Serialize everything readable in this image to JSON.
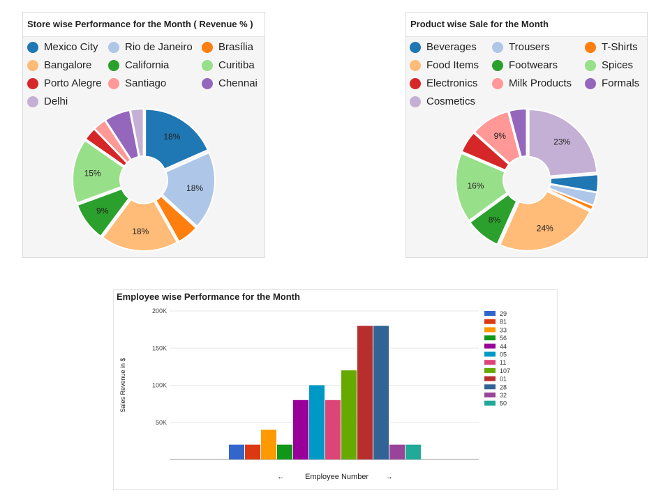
{
  "chart_data": [
    {
      "type": "pie",
      "donut": true,
      "title": "Store wise Performance for the Month ( Revenue % )",
      "legend_position": "top",
      "categories": [
        "Mexico City",
        "Rio de Janeiro",
        "Brasília",
        "Bangalore",
        "California",
        "Curitiba",
        "Porto Alegre",
        "Santiago",
        "Chennai",
        "Delhi"
      ],
      "values": [
        18,
        18,
        5,
        18,
        9,
        15,
        3,
        3,
        6,
        3
      ],
      "colors": [
        "#1f77b4",
        "#aec7e8",
        "#ff7f0e",
        "#ffbb78",
        "#2ca02c",
        "#98df8a",
        "#d62728",
        "#ff9896",
        "#9467bd",
        "#c5b0d5"
      ],
      "slice_labels": [
        "18%",
        "18%",
        "",
        "18%",
        "9%",
        "15%",
        "",
        "",
        "",
        ""
      ]
    },
    {
      "type": "pie",
      "donut": true,
      "title": "Product wise Sale for the Month",
      "legend_position": "top",
      "categories": [
        "Beverages",
        "Trousers",
        "T-Shirts",
        "Food Items",
        "Footwears",
        "Spices",
        "Electronics",
        "Milk Products",
        "Formals",
        "Cosmetics"
      ],
      "slice_order": [
        "Cosmetics",
        "Beverages",
        "Trousers",
        "T-Shirts",
        "Food Items",
        "Footwears",
        "Spices",
        "Electronics",
        "Milk Products",
        "Formals"
      ],
      "values": [
        4,
        3,
        1,
        24,
        8,
        16,
        5,
        9,
        4,
        23
      ],
      "colors": [
        "#1f77b4",
        "#aec7e8",
        "#ff7f0e",
        "#ffbb78",
        "#2ca02c",
        "#98df8a",
        "#d62728",
        "#ff9896",
        "#9467bd",
        "#c5b0d5"
      ],
      "slice_labels": [
        "",
        "",
        "",
        "24%",
        "8%",
        "16%",
        "",
        "9%",
        "",
        "23%"
      ]
    },
    {
      "type": "bar",
      "title": "Employee wise Performance for the Month",
      "xlabel": "Employee Number",
      "ylabel": "Sales Revenue in $",
      "ylim": [
        0,
        200000
      ],
      "yticks": [
        50000,
        100000,
        150000,
        200000
      ],
      "ytick_labels": [
        "50K",
        "100K",
        "150K",
        "200K"
      ],
      "grid": true,
      "legend_position": "right",
      "categories": [
        "29",
        "81",
        "33",
        "56",
        "44",
        "05",
        "11",
        "107",
        "01",
        "28",
        "32",
        "50"
      ],
      "values": [
        20000,
        20000,
        40000,
        20000,
        80000,
        100000,
        80000,
        120000,
        180000,
        180000,
        20000,
        20000
      ],
      "colors": [
        "#3366cc",
        "#dc3912",
        "#ff9900",
        "#109618",
        "#990099",
        "#0099c6",
        "#dd4477",
        "#66aa00",
        "#b82e2e",
        "#316395",
        "#994499",
        "#22aa99"
      ]
    }
  ],
  "nav": {
    "prev_arrow": "←",
    "next_arrow": "→"
  }
}
